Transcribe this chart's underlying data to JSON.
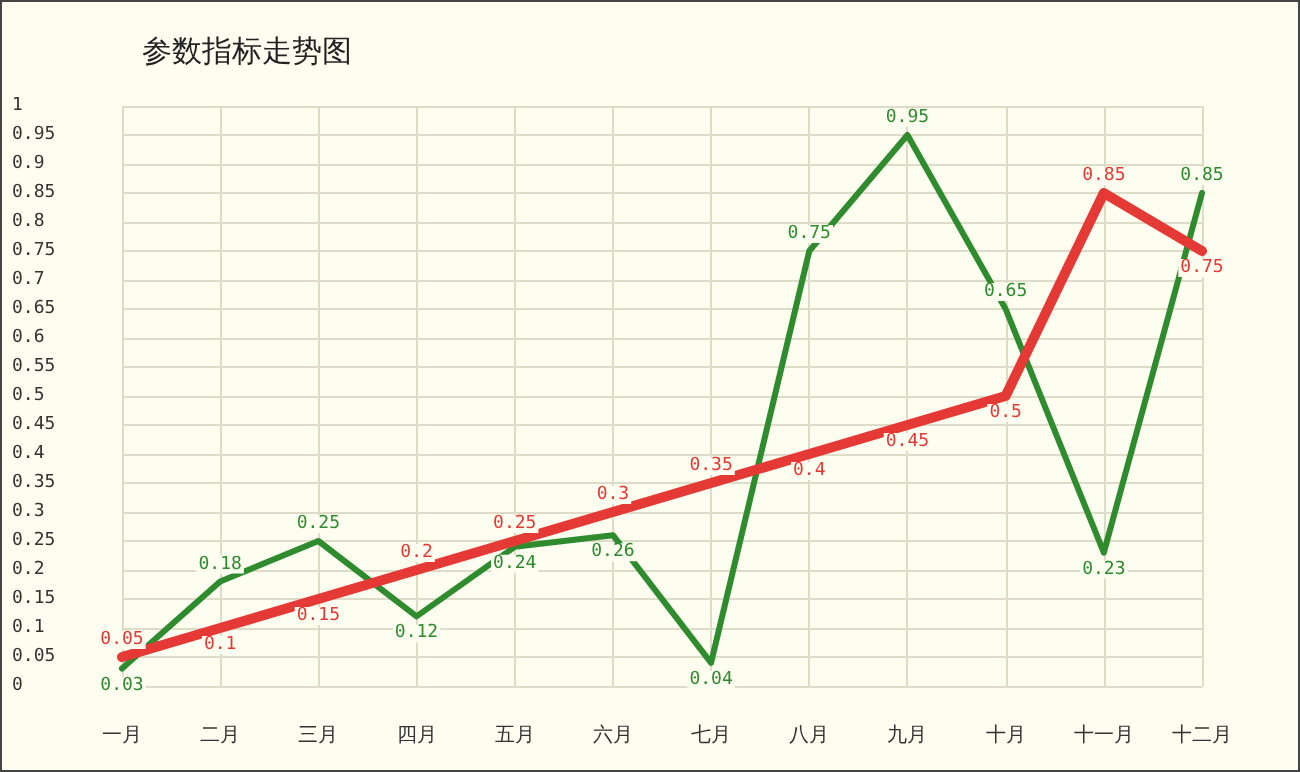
{
  "chart_data": {
    "type": "line",
    "title": "参数指标走势图",
    "categories": [
      "一月",
      "二月",
      "三月",
      "四月",
      "五月",
      "六月",
      "七月",
      "八月",
      "九月",
      "十月",
      "十一月",
      "十二月"
    ],
    "series": [
      {
        "color": "#2e8b2e",
        "values": [
          0.03,
          0.18,
          0.25,
          0.12,
          0.24,
          0.26,
          0.04,
          0.75,
          0.95,
          0.65,
          0.23,
          0.85
        ]
      },
      {
        "color": "#e53935",
        "values": [
          0.05,
          0.1,
          0.15,
          0.2,
          0.25,
          0.3,
          0.35,
          0.4,
          0.45,
          0.5,
          0.85,
          0.75
        ]
      }
    ],
    "ylim": [
      0,
      1
    ],
    "yticks": [
      0,
      0.05,
      0.1,
      0.15,
      0.2,
      0.25,
      0.3,
      0.35,
      0.4,
      0.45,
      0.5,
      0.55,
      0.6,
      0.65,
      0.7,
      0.75,
      0.8,
      0.85,
      0.9,
      0.95,
      1
    ],
    "grid": true,
    "data_labels": true,
    "marker": "none",
    "line_style": "solid"
  }
}
